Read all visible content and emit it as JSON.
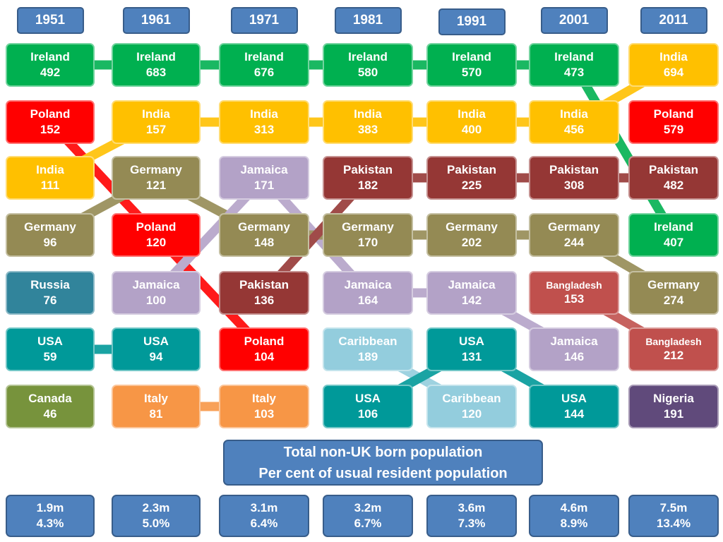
{
  "colors": {
    "Ireland": "#00b050",
    "India": "#ffc000",
    "Poland": "#ff0000",
    "Germany": "#948a54",
    "Russia": "#31849b",
    "USA": "#009999",
    "Canada": "#77933c",
    "Jamaica": "#b3a2c7",
    "Pakistan": "#953735",
    "Italy": "#f79646",
    "Caribbean": "#93cddd",
    "Bangladesh": "#c0504d",
    "Nigeria": "#604a7b"
  },
  "title": {
    "line1": "Total non-UK born population",
    "line2": "Per cent of usual resident population"
  },
  "columns": [
    {
      "year": "1951",
      "total": "1.9m",
      "percent": "4.3%",
      "entries": [
        {
          "country": "Ireland",
          "value": 492
        },
        {
          "country": "Poland",
          "value": 152
        },
        {
          "country": "India",
          "value": 111
        },
        {
          "country": "Germany",
          "value": 96
        },
        {
          "country": "Russia",
          "value": 76
        },
        {
          "country": "USA",
          "value": 59
        },
        {
          "country": "Canada",
          "value": 46
        }
      ]
    },
    {
      "year": "1961",
      "total": "2.3m",
      "percent": "5.0%",
      "entries": [
        {
          "country": "Ireland",
          "value": 683
        },
        {
          "country": "India",
          "value": 157
        },
        {
          "country": "Germany",
          "value": 121
        },
        {
          "country": "Poland",
          "value": 120
        },
        {
          "country": "Jamaica",
          "value": 100
        },
        {
          "country": "USA",
          "value": 94
        },
        {
          "country": "Italy",
          "value": 81
        }
      ]
    },
    {
      "year": "1971",
      "total": "3.1m",
      "percent": "6.4%",
      "entries": [
        {
          "country": "Ireland",
          "value": 676
        },
        {
          "country": "India",
          "value": 313
        },
        {
          "country": "Jamaica",
          "value": 171
        },
        {
          "country": "Germany",
          "value": 148
        },
        {
          "country": "Pakistan",
          "value": 136
        },
        {
          "country": "Poland",
          "value": 104
        },
        {
          "country": "Italy",
          "value": 103
        }
      ]
    },
    {
      "year": "1981",
      "total": "3.2m",
      "percent": "6.7%",
      "entries": [
        {
          "country": "Ireland",
          "value": 580
        },
        {
          "country": "India",
          "value": 383
        },
        {
          "country": "Pakistan",
          "value": 182
        },
        {
          "country": "Germany",
          "value": 170
        },
        {
          "country": "Jamaica",
          "value": 164
        },
        {
          "country": "Caribbean",
          "value": 189
        },
        {
          "country": "USA",
          "value": 106
        }
      ]
    },
    {
      "year": "1991",
      "total": "3.6m",
      "percent": "7.3%",
      "entries": [
        {
          "country": "Ireland",
          "value": 570
        },
        {
          "country": "India",
          "value": 400
        },
        {
          "country": "Pakistan",
          "value": 225
        },
        {
          "country": "Germany",
          "value": 202
        },
        {
          "country": "Jamaica",
          "value": 142
        },
        {
          "country": "USA",
          "value": 131
        },
        {
          "country": "Caribbean",
          "value": 120
        }
      ]
    },
    {
      "year": "2001",
      "total": "4.6m",
      "percent": "8.9%",
      "entries": [
        {
          "country": "Ireland",
          "value": 473
        },
        {
          "country": "India",
          "value": 456
        },
        {
          "country": "Pakistan",
          "value": 308
        },
        {
          "country": "Germany",
          "value": 244
        },
        {
          "country": "Bangladesh",
          "value": 153
        },
        {
          "country": "Jamaica",
          "value": 146
        },
        {
          "country": "USA",
          "value": 144
        }
      ]
    },
    {
      "year": "2011",
      "total": "7.5m",
      "percent": "13.4%",
      "entries": [
        {
          "country": "India",
          "value": 694
        },
        {
          "country": "Poland",
          "value": 579
        },
        {
          "country": "Pakistan",
          "value": 482
        },
        {
          "country": "Ireland",
          "value": 407
        },
        {
          "country": "Germany",
          "value": 274
        },
        {
          "country": "Bangladesh",
          "value": 212
        },
        {
          "country": "Nigeria",
          "value": 191
        }
      ]
    }
  ]
}
